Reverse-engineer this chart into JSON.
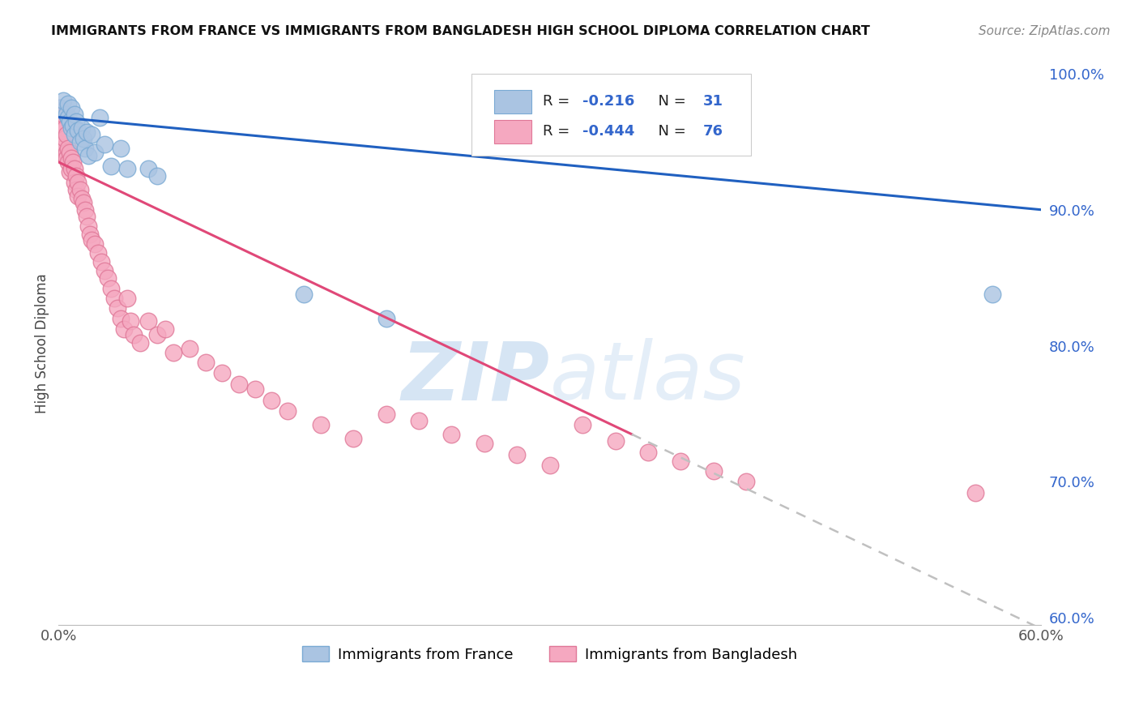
{
  "title": "IMMIGRANTS FROM FRANCE VS IMMIGRANTS FROM BANGLADESH HIGH SCHOOL DIPLOMA CORRELATION CHART",
  "source": "Source: ZipAtlas.com",
  "ylabel": "High School Diploma",
  "x_min": 0.0,
  "x_max": 0.6,
  "y_min": 0.595,
  "y_max": 1.008,
  "x_ticks": [
    0.0,
    0.1,
    0.2,
    0.3,
    0.4,
    0.5,
    0.6
  ],
  "x_tick_labels": [
    "0.0%",
    "",
    "",
    "",
    "",
    "",
    "60.0%"
  ],
  "y_ticks_right": [
    0.6,
    0.7,
    0.8,
    0.9,
    1.0
  ],
  "y_tick_labels_right": [
    "60.0%",
    "70.0%",
    "80.0%",
    "90.0%",
    "100.0%"
  ],
  "france_color": "#aac4e2",
  "france_edge_color": "#7aaad4",
  "bangladesh_color": "#f5a8c0",
  "bangladesh_edge_color": "#e07898",
  "france_R": -0.216,
  "france_N": 31,
  "bangladesh_R": -0.444,
  "bangladesh_N": 76,
  "france_line_color": "#2060c0",
  "bangladesh_line_color": "#e04878",
  "dashed_line_color": "#c0c0c0",
  "legend_france_label": "Immigrants from France",
  "legend_bangladesh_label": "Immigrants from Bangladesh",
  "watermark_zip": "ZIP",
  "watermark_atlas": "atlas",
  "background_color": "#ffffff",
  "grid_color": "#dddddd",
  "france_line_x0": 0.0,
  "france_line_y0": 0.968,
  "france_line_x1": 0.6,
  "france_line_y1": 0.9,
  "bangladesh_line_x0": 0.0,
  "bangladesh_line_y0": 0.935,
  "bangladesh_line_x1_solid": 0.35,
  "bangladesh_line_y1_solid": 0.735,
  "bangladesh_line_x1_dash": 0.6,
  "bangladesh_line_y1_dash": 0.592,
  "france_pts_x": [
    0.001,
    0.003,
    0.005,
    0.006,
    0.006,
    0.007,
    0.008,
    0.008,
    0.009,
    0.01,
    0.01,
    0.011,
    0.012,
    0.013,
    0.014,
    0.015,
    0.016,
    0.017,
    0.018,
    0.02,
    0.022,
    0.025,
    0.028,
    0.032,
    0.038,
    0.042,
    0.055,
    0.06,
    0.15,
    0.2,
    0.57
  ],
  "france_pts_y": [
    0.975,
    0.98,
    0.97,
    0.968,
    0.978,
    0.965,
    0.96,
    0.975,
    0.962,
    0.97,
    0.955,
    0.965,
    0.958,
    0.95,
    0.96,
    0.952,
    0.945,
    0.957,
    0.94,
    0.955,
    0.942,
    0.968,
    0.948,
    0.932,
    0.945,
    0.93,
    0.93,
    0.925,
    0.838,
    0.82,
    0.838
  ],
  "bangladesh_pts_x": [
    0.001,
    0.001,
    0.001,
    0.002,
    0.002,
    0.002,
    0.003,
    0.003,
    0.003,
    0.004,
    0.004,
    0.004,
    0.005,
    0.005,
    0.005,
    0.006,
    0.006,
    0.007,
    0.007,
    0.008,
    0.008,
    0.009,
    0.01,
    0.01,
    0.011,
    0.011,
    0.012,
    0.012,
    0.013,
    0.014,
    0.015,
    0.016,
    0.017,
    0.018,
    0.019,
    0.02,
    0.022,
    0.024,
    0.026,
    0.028,
    0.03,
    0.032,
    0.034,
    0.036,
    0.038,
    0.04,
    0.042,
    0.044,
    0.046,
    0.05,
    0.055,
    0.06,
    0.065,
    0.07,
    0.08,
    0.09,
    0.1,
    0.11,
    0.12,
    0.13,
    0.14,
    0.16,
    0.18,
    0.2,
    0.22,
    0.24,
    0.26,
    0.28,
    0.3,
    0.32,
    0.34,
    0.36,
    0.38,
    0.4,
    0.42,
    0.56
  ],
  "bangladesh_pts_y": [
    0.975,
    0.968,
    0.96,
    0.972,
    0.965,
    0.95,
    0.97,
    0.958,
    0.945,
    0.96,
    0.952,
    0.94,
    0.955,
    0.942,
    0.938,
    0.945,
    0.935,
    0.942,
    0.928,
    0.938,
    0.93,
    0.935,
    0.93,
    0.92,
    0.925,
    0.915,
    0.92,
    0.91,
    0.915,
    0.908,
    0.905,
    0.9,
    0.895,
    0.888,
    0.882,
    0.878,
    0.875,
    0.868,
    0.862,
    0.855,
    0.85,
    0.842,
    0.835,
    0.828,
    0.82,
    0.812,
    0.835,
    0.818,
    0.808,
    0.802,
    0.818,
    0.808,
    0.812,
    0.795,
    0.798,
    0.788,
    0.78,
    0.772,
    0.768,
    0.76,
    0.752,
    0.742,
    0.732,
    0.75,
    0.745,
    0.735,
    0.728,
    0.72,
    0.712,
    0.742,
    0.73,
    0.722,
    0.715,
    0.708,
    0.7,
    0.692
  ]
}
